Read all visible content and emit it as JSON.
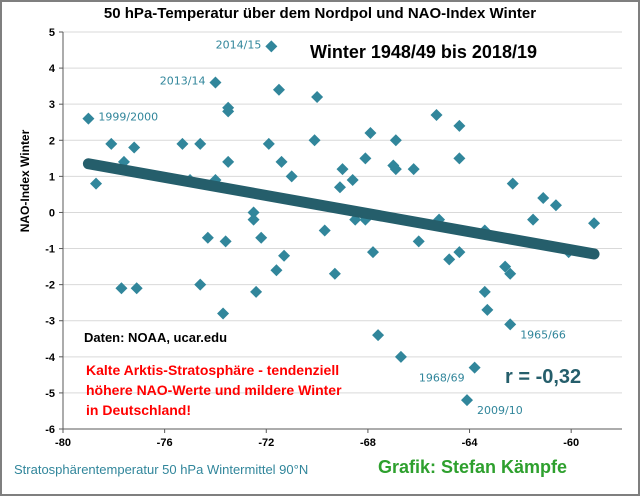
{
  "chart_data": {
    "type": "scatter",
    "title": "50 hPa-Temperatur über dem Nordpol und NAO-Index Winter",
    "subtitle": "Winter 1948/49 bis 2018/19",
    "xlabel": "Stratosphärentemperatur 50 hPa Wintermittel 90°N",
    "ylabel": "NAO-Index Winter",
    "xlim": [
      -80,
      -58
    ],
    "ylim": [
      -6,
      5
    ],
    "xticks": [
      -80,
      -76,
      -72,
      -68,
      -64,
      -60
    ],
    "yticks": [
      5,
      4,
      3,
      2,
      1,
      0,
      -1,
      -2,
      -3,
      -4,
      -5,
      -6
    ],
    "grid": "horizontal",
    "point_color": "#31869b",
    "trend_color": "#255e6b",
    "points": [
      [
        -79.0,
        2.6
      ],
      [
        -78.7,
        0.8
      ],
      [
        -78.1,
        1.9
      ],
      [
        -77.6,
        1.4
      ],
      [
        -77.2,
        1.8
      ],
      [
        -77.7,
        -2.1
      ],
      [
        -77.1,
        -2.1
      ],
      [
        -75.3,
        1.9
      ],
      [
        -75.0,
        0.9
      ],
      [
        -74.6,
        1.9
      ],
      [
        -74.6,
        -2.0
      ],
      [
        -74.3,
        -0.7
      ],
      [
        -74.0,
        0.9
      ],
      [
        -74.0,
        3.6
      ],
      [
        -73.5,
        2.9
      ],
      [
        -73.5,
        2.8
      ],
      [
        -73.5,
        1.4
      ],
      [
        -73.6,
        -0.8
      ],
      [
        -73.7,
        -2.8
      ],
      [
        -72.5,
        0.0
      ],
      [
        -72.5,
        -0.2
      ],
      [
        -72.2,
        -0.7
      ],
      [
        -72.4,
        -2.2
      ],
      [
        -71.9,
        1.9
      ],
      [
        -71.8,
        4.6
      ],
      [
        -71.5,
        3.4
      ],
      [
        -71.4,
        1.4
      ],
      [
        -71.6,
        -1.6
      ],
      [
        -71.3,
        -1.2
      ],
      [
        -71.0,
        1.0
      ],
      [
        -70.0,
        3.2
      ],
      [
        -70.1,
        2.0
      ],
      [
        -69.7,
        -0.5
      ],
      [
        -69.3,
        -1.7
      ],
      [
        -69.1,
        0.7
      ],
      [
        -69.0,
        1.2
      ],
      [
        -68.6,
        0.9
      ],
      [
        -68.5,
        -0.2
      ],
      [
        -68.1,
        1.5
      ],
      [
        -68.1,
        -0.2
      ],
      [
        -67.9,
        2.2
      ],
      [
        -67.8,
        -1.1
      ],
      [
        -67.6,
        -3.4
      ],
      [
        -67.0,
        1.3
      ],
      [
        -66.9,
        1.2
      ],
      [
        -66.9,
        2.0
      ],
      [
        -66.7,
        -4.0
      ],
      [
        -66.2,
        1.2
      ],
      [
        -66.0,
        -0.8
      ],
      [
        -65.3,
        2.7
      ],
      [
        -65.2,
        -0.2
      ],
      [
        -64.8,
        -1.3
      ],
      [
        -64.4,
        2.4
      ],
      [
        -64.4,
        1.5
      ],
      [
        -64.4,
        -1.1
      ],
      [
        -64.1,
        -5.2
      ],
      [
        -63.8,
        -4.3
      ],
      [
        -63.4,
        -0.5
      ],
      [
        -63.4,
        -2.2
      ],
      [
        -63.3,
        -2.7
      ],
      [
        -62.6,
        -1.5
      ],
      [
        -62.4,
        -1.7
      ],
      [
        -62.4,
        -3.1
      ],
      [
        -62.3,
        0.8
      ],
      [
        -61.5,
        -0.2
      ],
      [
        -61.1,
        0.4
      ],
      [
        -60.6,
        0.2
      ],
      [
        -60.1,
        -1.1
      ],
      [
        -59.1,
        -0.3
      ]
    ],
    "trendline": {
      "x": [
        -79.0,
        -59.1
      ],
      "y": [
        1.35,
        -1.15
      ]
    },
    "annotations": [
      {
        "label": "2014/15",
        "x": -71.8,
        "y": 4.6,
        "side": "left"
      },
      {
        "label": "2013/14",
        "x": -74.0,
        "y": 3.6,
        "side": "left"
      },
      {
        "label": "1999/2000",
        "x": -79.0,
        "y": 2.6,
        "side": "right"
      },
      {
        "label": "1965/66",
        "x": -62.4,
        "y": -3.1,
        "side": "right"
      },
      {
        "label": "1968/69",
        "x": -63.8,
        "y": -4.3,
        "side": "left"
      },
      {
        "label": "2009/10",
        "x": -64.1,
        "y": -5.2,
        "side": "right"
      }
    ],
    "source": "Daten: NOAA, ucar.edu",
    "note_lines": [
      "Kalte Arktis-Stratosphäre - tendenziell",
      "höhere NAO-Werte und mildere Winter",
      "in Deutschland!"
    ],
    "correlation": "r = -0,32",
    "credit": "Grafik: Stefan Kämpfe"
  }
}
